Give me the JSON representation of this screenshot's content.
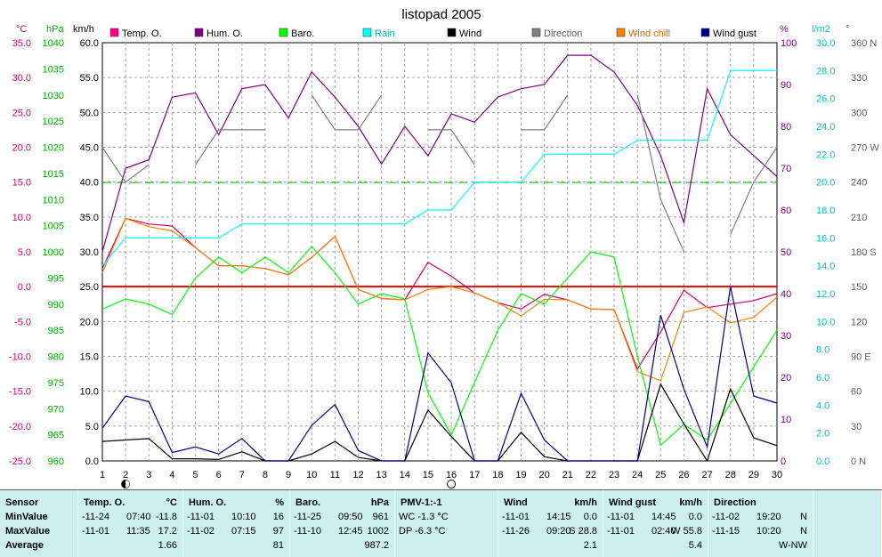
{
  "chart_data": {
    "type": "line",
    "title": "listopad 2005",
    "x": [
      1,
      2,
      3,
      4,
      5,
      6,
      7,
      8,
      9,
      10,
      11,
      12,
      13,
      14,
      15,
      16,
      17,
      18,
      19,
      20,
      21,
      22,
      23,
      24,
      25,
      26,
      27,
      28,
      29,
      30
    ],
    "xlim": [
      1,
      30
    ],
    "axes": {
      "temp": {
        "unit": "°C",
        "range": [
          -25,
          35
        ],
        "ticks": [
          "35.0",
          "30.0",
          "25.0",
          "20.0",
          "15.0",
          "10.0",
          "5.0",
          "0.0",
          "-5.0",
          "-10.0",
          "-15.0",
          "-20.0",
          "-25.0"
        ],
        "color": "#d0006f"
      },
      "baro": {
        "unit": "hPa",
        "range": [
          960,
          1040
        ],
        "ticks": [
          "1040",
          "1035",
          "1030",
          "1025",
          "1020",
          "1015",
          "1010",
          "1005",
          "1000",
          "995",
          "990",
          "985",
          "980",
          "975",
          "970",
          "965",
          "960"
        ],
        "color": "#00b000"
      },
      "wind": {
        "unit": "km/h",
        "range": [
          0,
          60
        ],
        "ticks": [
          "60.0",
          "55.0",
          "50.0",
          "45.0",
          "40.0",
          "35.0",
          "30.0",
          "25.0",
          "20.0",
          "15.0",
          "10.0",
          "5.0",
          "0.0"
        ],
        "color": "#000000"
      },
      "hum": {
        "unit": "%",
        "range": [
          0,
          100
        ],
        "ticks": [
          "100",
          "90",
          "80",
          "70",
          "60",
          "50",
          "40",
          "30",
          "20",
          "10",
          "0"
        ],
        "color": "#800080"
      },
      "rain": {
        "unit": "l/m2",
        "range": [
          0,
          30
        ],
        "ticks": [
          "30.0",
          "28.0",
          "26.0",
          "24.0",
          "22.0",
          "20.0",
          "18.0",
          "16.0",
          "14.0",
          "12.0",
          "10.0",
          "8.0",
          "6.0",
          "4.0",
          "2.0",
          "0.0"
        ],
        "color": "#00c0c0"
      },
      "dir": {
        "unit": "°",
        "range": [
          0,
          360
        ],
        "ticks": [
          "360 N",
          "330",
          "300",
          "270 W",
          "240",
          "210",
          "180 S",
          "150",
          "120",
          "90 E",
          "60",
          "30",
          "0 N"
        ],
        "color": "#606060"
      }
    },
    "legend": [
      {
        "name": "Temp. O.",
        "color": "#ff0080"
      },
      {
        "name": "Hum. O.",
        "color": "#800080"
      },
      {
        "name": "Baro.",
        "color": "#00ff00"
      },
      {
        "name": "Rain",
        "color": "#00ffff"
      },
      {
        "name": "Wind",
        "color": "#000000"
      },
      {
        "name": "Direction",
        "color": "#808080"
      },
      {
        "name": "Wind chill",
        "color": "#ff8000"
      },
      {
        "name": "Wind gust",
        "color": "#000080"
      }
    ],
    "series": [
      {
        "name": "Temp. O.",
        "axis": "temp",
        "color": "#d0006f",
        "values": [
          2.6,
          9.8,
          9.0,
          8.7,
          5.6,
          3.0,
          3.0,
          2.6,
          1.7,
          4.2,
          7.2,
          -0.4,
          -1.7,
          -1.9,
          3.5,
          1.5,
          -0.9,
          -2.3,
          -3.2,
          -1.1,
          -1.9,
          -3.2,
          -3.3,
          -11.8,
          -6.5,
          -0.5,
          -3.0,
          -2.5,
          -2.0,
          -1.0
        ]
      },
      {
        "name": "Wind chill",
        "axis": "temp",
        "color": "#ff8000",
        "values": [
          2.0,
          9.8,
          8.6,
          8.0,
          5.6,
          3.0,
          3.0,
          2.6,
          1.7,
          4.2,
          7.2,
          -0.4,
          -1.7,
          -1.9,
          -0.4,
          0.0,
          -0.9,
          -2.3,
          -4.2,
          -1.8,
          -1.9,
          -3.2,
          -3.3,
          -12.2,
          -13.5,
          -3.7,
          -2.9,
          -5.2,
          -4.4,
          -1.5
        ]
      },
      {
        "name": "Hum. O.",
        "axis": "hum",
        "color": "#800080",
        "values": [
          50,
          70,
          72,
          87,
          88,
          78,
          89,
          90,
          82,
          93,
          87,
          80,
          71,
          80,
          73,
          83,
          81,
          87,
          89,
          90,
          97,
          97,
          93,
          85,
          73,
          57,
          89,
          78,
          73,
          68
        ]
      },
      {
        "name": "Baro.",
        "axis": "baro",
        "color": "#00ff00",
        "values": [
          989,
          991,
          990,
          988,
          995,
          999,
          996,
          999,
          996,
          1001,
          996,
          990,
          992,
          991,
          973,
          965,
          975,
          985,
          992,
          990,
          995,
          1000,
          999,
          980,
          963,
          967,
          964,
          971,
          978,
          985
        ]
      },
      {
        "name": "Rain",
        "axis": "rain",
        "color": "#00ffff",
        "values": [
          14.0,
          16.0,
          16.0,
          16.0,
          16.0,
          16.0,
          17.0,
          17.0,
          17.0,
          17.0,
          17.0,
          17.0,
          17.0,
          17.0,
          18.0,
          18.0,
          20.0,
          20.0,
          20.0,
          22.0,
          22.0,
          22.0,
          22.0,
          23.0,
          23.0,
          23.0,
          23.0,
          28.0,
          28.0,
          28.0
        ]
      },
      {
        "name": "Wind",
        "axis": "wind",
        "color": "#000000",
        "values": [
          2.8,
          3.0,
          3.2,
          0.3,
          0.3,
          0.2,
          1.3,
          0.0,
          0.0,
          1.0,
          2.8,
          0.5,
          0.0,
          0.0,
          7.3,
          3.5,
          0.0,
          0.0,
          4.1,
          0.6,
          0.0,
          0.0,
          0.0,
          0.0,
          11.0,
          5.3,
          0.0,
          10.3,
          3.3,
          2.2
        ]
      },
      {
        "name": "Wind gust",
        "axis": "wind",
        "color": "#000080",
        "values": [
          4.7,
          9.3,
          8.5,
          1.2,
          2.0,
          1.0,
          3.2,
          0.0,
          0.0,
          5.1,
          8.1,
          1.5,
          0.0,
          0.0,
          15.5,
          11.2,
          0.0,
          0.0,
          9.7,
          3.0,
          0.0,
          0.0,
          0.0,
          0.0,
          20.9,
          10.3,
          2.0,
          25.0,
          9.3,
          8.3
        ]
      },
      {
        "name": "Direction",
        "axis": "dir",
        "color": "#808080",
        "values": [
          270,
          240,
          255,
          null,
          255,
          285,
          285,
          285,
          null,
          315,
          285,
          285,
          315,
          null,
          285,
          285,
          255,
          null,
          285,
          285,
          315,
          null,
          null,
          315,
          225,
          180,
          null,
          195,
          240,
          270
        ]
      }
    ],
    "reference_lines": [
      {
        "axis": "temp",
        "value": 0.0,
        "color": "#e00000"
      },
      {
        "axis": "baro",
        "value": 1013.25,
        "color": "#00c000",
        "style": "dashed"
      }
    ],
    "moon_phases": [
      {
        "day": 2,
        "phase": "new"
      },
      {
        "day": 16,
        "phase": "full"
      }
    ],
    "grid": true
  },
  "summary": {
    "columns": [
      {
        "header": "Sensor",
        "unit": "",
        "rows": [
          [
            "MinValue",
            "",
            ""
          ],
          [
            "MaxValue",
            "",
            ""
          ],
          [
            "Average",
            "",
            ""
          ]
        ]
      },
      {
        "header": "Temp. O.",
        "unit": "°C",
        "rows": [
          [
            "-11-24",
            "07:40",
            "-11.8"
          ],
          [
            "-11-01",
            "11:35",
            "17.2"
          ],
          [
            "",
            "",
            "1.66"
          ]
        ]
      },
      {
        "header": "Hum. O.",
        "unit": "%",
        "rows": [
          [
            "-11-01",
            "10:10",
            "16"
          ],
          [
            "-11-02",
            "07:15",
            "97"
          ],
          [
            "",
            "",
            "81"
          ]
        ]
      },
      {
        "header": "Baro.",
        "unit": "hPa",
        "rows": [
          [
            "-11-25",
            "09:50",
            "961"
          ],
          [
            "-11-10",
            "12:45",
            "1002"
          ],
          [
            "",
            "",
            "987.2"
          ]
        ]
      },
      {
        "header": "PMV-1:-1",
        "unit": "",
        "rows": [
          [
            "WC -1.3 °C",
            "",
            ""
          ],
          [
            "DP -6.3 °C",
            "",
            ""
          ],
          [
            "",
            "",
            ""
          ]
        ]
      },
      {
        "header": "Wind",
        "unit": "km/h",
        "rows": [
          [
            "-11-01",
            "14:15",
            "0.0"
          ],
          [
            "-11-26",
            "09:20",
            "S 28.8"
          ],
          [
            "",
            "",
            "2.1"
          ]
        ]
      },
      {
        "header": "Wind gust",
        "unit": "km/h",
        "rows": [
          [
            "-11-01",
            "14:45",
            "0.0"
          ],
          [
            "-11-01",
            "02:40",
            "W 55.8"
          ],
          [
            "",
            "",
            "5.4"
          ]
        ]
      },
      {
        "header": "Direction",
        "unit": "",
        "rows": [
          [
            "-11-02",
            "19:20",
            "N"
          ],
          [
            "-11-15",
            "10:20",
            "N"
          ],
          [
            "",
            "",
            "W-NW"
          ]
        ]
      },
      {
        "header": "",
        "unit": "",
        "rows": [
          [
            "",
            "",
            ""
          ],
          [
            "",
            "",
            ""
          ],
          [
            "",
            "",
            ""
          ]
        ]
      }
    ]
  }
}
